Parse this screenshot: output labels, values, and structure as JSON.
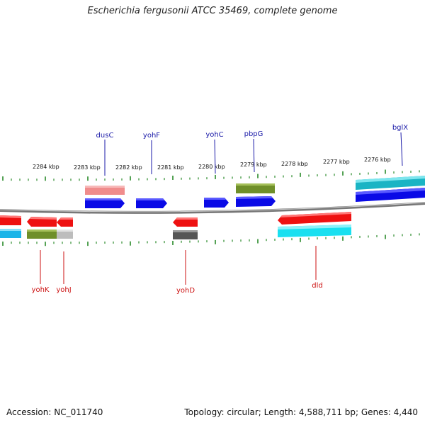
{
  "title": "Escherichia fergusonii ATCC 35469, complete genome",
  "accession_line": "Accession: NC_011740",
  "summary_line": "Topology: circular; Length: 4,588,711 bp; Genes: 4,440",
  "colors": {
    "forward_label": "#1a1aa8",
    "reverse_label": "#cc1111",
    "tick": "#2a8a2a",
    "backbone": "#777777"
  },
  "kbp_labels": [
    "2284 kbp",
    "2283 kbp",
    "2282 kbp",
    "2281 kbp",
    "2280 kbp",
    "2279 kbp",
    "2278 kbp",
    "2277 kbp",
    "2276 kbp"
  ],
  "forward_gene_labels": [
    "dusC",
    "yohF",
    "yohC",
    "pbpG",
    "bglX"
  ],
  "reverse_gene_labels": [
    "yohK",
    "yohJ",
    "yohD",
    "dld"
  ]
}
